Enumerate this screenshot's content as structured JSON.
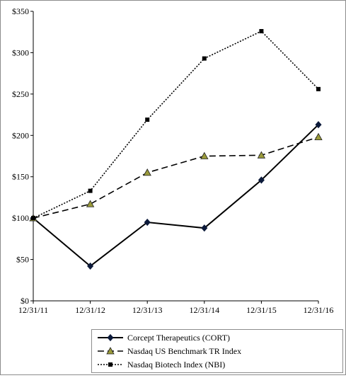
{
  "chart_data": {
    "type": "line",
    "title": "",
    "xlabel": "",
    "ylabel": "",
    "categories": [
      "12/31/11",
      "12/31/12",
      "12/31/13",
      "12/31/14",
      "12/31/15",
      "12/31/16"
    ],
    "ylim": [
      0,
      350
    ],
    "yticks": [
      0,
      50,
      100,
      150,
      200,
      250,
      300,
      350
    ],
    "ytick_labels": [
      "$0",
      "$50",
      "$100",
      "$150",
      "$200",
      "$250",
      "$300",
      "$350"
    ],
    "grid": false,
    "legend_position": "bottom-right",
    "series": [
      {
        "name": "Corcept Therapeutics (CORT)",
        "values": [
          100,
          42,
          95,
          88,
          146,
          213
        ],
        "line_style": "solid",
        "marker": "diamond",
        "color": "#000000"
      },
      {
        "name": "Nasdaq US Benchmark TR Index",
        "values": [
          100,
          117,
          155,
          175,
          176,
          198
        ],
        "line_style": "dashed",
        "marker": "triangle",
        "color": "#000000",
        "marker_fill": "#9a9a3a"
      },
      {
        "name": "Nasdaq Biotech Index (NBI)",
        "values": [
          100,
          133,
          219,
          293,
          326,
          256
        ],
        "line_style": "dotted",
        "marker": "square",
        "color": "#000000"
      }
    ]
  }
}
